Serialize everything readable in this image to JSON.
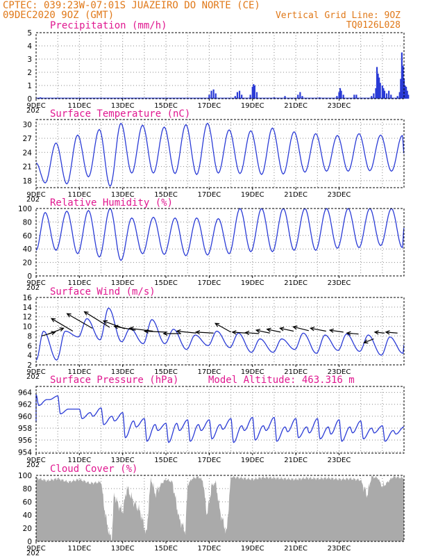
{
  "header": {
    "line1": "CPTEC:  039:23W-07:01S  JUAZEIRO DO NORTE (CE)",
    "run": "09DEC2020 9OZ (GMT)",
    "grid_line": "Vertical Grid Line: 9OZ",
    "code": "TQ0126L028"
  },
  "colors": {
    "series": "#2a3bd6",
    "title": "#e01890",
    "header": "#e07818",
    "cloud": "#aaaaaa"
  },
  "x_labels": [
    "9DEC",
    "11DEC",
    "13DEC",
    "15DEC",
    "17DEC",
    "19DEC",
    "21DEC",
    "23DEC"
  ],
  "x_sub_label": "202",
  "chart_data": [
    {
      "type": "bar",
      "title": "Precipitation (mm/h)",
      "x_unit": "days since 9DEC 09Z",
      "ylim": [
        0,
        5
      ],
      "yticks": [
        0,
        1,
        2,
        3,
        4,
        5
      ],
      "points": [
        [
          0.2,
          0.1
        ],
        [
          1.0,
          0.05
        ],
        [
          2.0,
          0.05
        ],
        [
          4.0,
          0.05
        ],
        [
          6.0,
          0.05
        ],
        [
          7.6,
          0.05
        ],
        [
          8.0,
          0.3
        ],
        [
          8.1,
          0.6
        ],
        [
          8.2,
          0.7
        ],
        [
          8.3,
          0.4
        ],
        [
          9.2,
          0.2
        ],
        [
          9.3,
          0.5
        ],
        [
          9.4,
          0.6
        ],
        [
          9.5,
          0.3
        ],
        [
          9.9,
          0.3
        ],
        [
          10.0,
          0.9
        ],
        [
          10.05,
          1.1
        ],
        [
          10.1,
          1.0
        ],
        [
          10.2,
          0.5
        ],
        [
          11.0,
          0.1
        ],
        [
          11.5,
          0.2
        ],
        [
          12.1,
          0.3
        ],
        [
          12.2,
          0.5
        ],
        [
          12.3,
          0.2
        ],
        [
          13.1,
          0.1
        ],
        [
          13.9,
          0.2
        ],
        [
          14.0,
          0.5
        ],
        [
          14.05,
          0.8
        ],
        [
          14.1,
          0.6
        ],
        [
          14.2,
          0.3
        ],
        [
          14.7,
          0.3
        ],
        [
          14.8,
          0.3
        ],
        [
          15.5,
          0.2
        ],
        [
          15.6,
          0.4
        ],
        [
          15.7,
          0.8
        ],
        [
          15.75,
          2.4
        ],
        [
          15.8,
          1.9
        ],
        [
          15.85,
          1.6
        ],
        [
          15.9,
          1.2
        ],
        [
          16.0,
          1.0
        ],
        [
          16.05,
          0.8
        ],
        [
          16.1,
          0.6
        ],
        [
          16.2,
          0.4
        ],
        [
          16.3,
          0.6
        ],
        [
          16.4,
          0.3
        ],
        [
          16.7,
          0.2
        ],
        [
          16.8,
          0.5
        ],
        [
          16.85,
          1.5
        ],
        [
          16.9,
          3.5
        ],
        [
          16.95,
          2.5
        ],
        [
          17.0,
          1.5
        ],
        [
          17.05,
          1.0
        ],
        [
          17.1,
          0.9
        ],
        [
          17.15,
          0.6
        ],
        [
          17.2,
          0.3
        ]
      ]
    },
    {
      "type": "line",
      "title": "Surface Temperature (nC)",
      "x_unit": "days since 9DEC 09Z",
      "ylim": [
        16.5,
        31
      ],
      "yticks": [
        18,
        21,
        24,
        27,
        30
      ],
      "series": [
        {
          "period_days": 1,
          "min_phase": 0.42,
          "max_phase": 0.92,
          "minima": [
            17.5,
            17.3,
            18.8,
            16.8,
            19.6,
            19.6,
            19.5,
            19.3,
            19.6,
            19.5,
            19.3,
            19.4,
            19.8,
            20.0,
            20.0,
            20.1,
            20.0
          ],
          "maxima": [
            26.0,
            27.7,
            28.9,
            30.2,
            29.8,
            29.4,
            29.9,
            30.2,
            28.8,
            28.6,
            29.2,
            28.4,
            28.0,
            27.6,
            28.0,
            27.7,
            27.6
          ]
        }
      ]
    },
    {
      "type": "line",
      "title": "Relative Humidity (%)",
      "x_unit": "days since 9DEC 09Z",
      "ylim": [
        0,
        100
      ],
      "yticks": [
        0,
        20,
        40,
        60,
        80,
        100
      ],
      "series": [
        {
          "period_days": 1,
          "min_phase": 0.92,
          "max_phase": 0.42,
          "start_value": 38,
          "minima": [
            38,
            33,
            28,
            23,
            33,
            32,
            30,
            31,
            33,
            36,
            36,
            38,
            38,
            41,
            42,
            45,
            42
          ],
          "maxima": [
            94,
            96,
            97,
            100,
            86,
            87,
            86,
            86,
            85,
            100,
            100,
            100,
            100,
            100,
            100,
            100,
            100
          ]
        }
      ]
    },
    {
      "type": "line",
      "title": "Surface Wind (m/s)",
      "x_unit": "days since 9DEC 09Z",
      "ylim": [
        2,
        16
      ],
      "yticks": [
        2,
        4,
        6,
        8,
        10,
        12,
        14,
        16
      ],
      "series": [
        {
          "period_days": 1,
          "min_phase": 0.95,
          "max_phase": 0.35,
          "start_value": 3,
          "minima": [
            3.0,
            7.8,
            7.2,
            6.8,
            6.4,
            6.4,
            5.2,
            6.0,
            5.6,
            4.6,
            4.6,
            5.2,
            4.4,
            5.0,
            4.8,
            4.0,
            4.4
          ],
          "maxima": [
            9.0,
            9.0,
            11.6,
            13.8,
            9.6,
            11.4,
            9.4,
            8.2,
            9.0,
            8.6,
            7.4,
            7.4,
            8.6,
            8.2,
            8.4,
            8.2,
            7.8
          ]
        }
      ],
      "wind_vectors": [
        {
          "x": 0.25,
          "y": 8.0,
          "u": 1.4,
          "v": 0.4
        },
        {
          "x": 0.55,
          "y": 8.4,
          "u": 1.6,
          "v": 0.6
        },
        {
          "x": 1.7,
          "y": 9.0,
          "u": -2.2,
          "v": 1.3
        },
        {
          "x": 2.6,
          "y": 9.6,
          "u": -2.6,
          "v": 1.5
        },
        {
          "x": 3.4,
          "y": 9.8,
          "u": -2.6,
          "v": 1.6
        },
        {
          "x": 4.1,
          "y": 9.5,
          "u": -2.2,
          "v": 0.8
        },
        {
          "x": 4.6,
          "y": 9.2,
          "u": -2.2,
          "v": 0.4
        },
        {
          "x": 5.4,
          "y": 9.0,
          "u": -2.4,
          "v": 0.3
        },
        {
          "x": 6.0,
          "y": 8.8,
          "u": -2.2,
          "v": 0.1
        },
        {
          "x": 6.7,
          "y": 8.5,
          "u": -1.8,
          "v": 0.0
        },
        {
          "x": 7.4,
          "y": 8.6,
          "u": -2.0,
          "v": 0.2
        },
        {
          "x": 8.2,
          "y": 8.6,
          "u": -1.8,
          "v": 0.1
        },
        {
          "x": 9.0,
          "y": 8.8,
          "u": -1.6,
          "v": 0.9
        },
        {
          "x": 9.7,
          "y": 8.6,
          "u": -1.4,
          "v": 0.1
        },
        {
          "x": 10.3,
          "y": 8.5,
          "u": -1.4,
          "v": 0.1
        },
        {
          "x": 10.8,
          "y": 8.6,
          "u": -1.4,
          "v": 0.3
        },
        {
          "x": 11.3,
          "y": 8.8,
          "u": -1.4,
          "v": 0.3
        },
        {
          "x": 11.9,
          "y": 9.0,
          "u": -1.4,
          "v": 0.3
        },
        {
          "x": 12.6,
          "y": 9.1,
          "u": -1.6,
          "v": 0.4
        },
        {
          "x": 13.4,
          "y": 9.0,
          "u": -1.6,
          "v": 0.3
        },
        {
          "x": 14.2,
          "y": 8.8,
          "u": -1.4,
          "v": 0.2
        },
        {
          "x": 14.9,
          "y": 8.4,
          "u": -1.2,
          "v": 0.1
        },
        {
          "x": 15.6,
          "y": 7.4,
          "u": -1.0,
          "v": -0.4
        },
        {
          "x": 16.1,
          "y": 8.6,
          "u": -1.0,
          "v": 0.1
        },
        {
          "x": 16.7,
          "y": 8.6,
          "u": -1.2,
          "v": 0.1
        }
      ]
    },
    {
      "type": "line",
      "title": "Surface Pressure (hPa)",
      "annotation": "Model Altitude: 463.316 m",
      "x_unit": "days since 9DEC 09Z",
      "ylim": [
        953.8,
        965
      ],
      "yticks": [
        954,
        956,
        958,
        960,
        962,
        964
      ],
      "series": [
        {
          "period_days": 0.5,
          "min_phase": 0.25,
          "max_phase": 0.0,
          "start_value": 959.0,
          "minima": [
            961.8,
            962.8,
            960.4,
            961.2,
            959.6,
            960.0,
            958.6,
            959.2,
            956.4,
            958.2,
            955.8,
            957.6,
            955.6,
            957.6,
            955.8,
            957.6,
            956.2,
            957.8,
            955.6,
            957.6,
            956.0,
            957.6,
            955.8,
            957.4,
            956.4,
            957.2,
            956.2,
            957.0,
            955.8,
            957.2,
            956.2,
            957.2,
            955.8,
            957.0,
            955.2
          ],
          "maxima": [
            963.6,
            962.8,
            963.4,
            961.2,
            961.2,
            960.6,
            961.4,
            960.0,
            960.6,
            959.2,
            959.6,
            958.6,
            958.8,
            958.8,
            959.4,
            958.6,
            959.4,
            958.6,
            959.6,
            958.4,
            959.8,
            958.4,
            959.8,
            958.2,
            959.6,
            958.2,
            959.6,
            958.2,
            959.4,
            958.2,
            959.2,
            958.0,
            958.4,
            957.6,
            958.2
          ]
        }
      ]
    },
    {
      "type": "area",
      "title": "Cloud Cover (%)",
      "x_unit": "days since 9DEC 09Z",
      "ylim": [
        0,
        100
      ],
      "yticks": [
        0,
        20,
        40,
        60,
        80,
        100
      ],
      "series": [
        {
          "name": "Cloud Cover",
          "x": [
            0,
            0.5,
            1,
            1.5,
            2,
            2.5,
            3,
            3.2,
            3.4,
            3.5,
            3.6,
            3.8,
            4.0,
            4.2,
            4.5,
            4.8,
            5.0,
            5.1,
            5.3,
            5.5,
            5.8,
            6.0,
            6.3,
            6.6,
            6.9,
            7.0,
            7.2,
            7.5,
            7.7,
            7.9,
            8.1,
            8.3,
            8.5,
            8.8,
            9.0,
            9.5,
            10,
            10.5,
            11,
            11.5,
            12,
            12.5,
            13,
            13.5,
            14,
            14.5,
            15,
            15.3,
            15.5,
            15.8,
            16,
            16.5,
            17
          ],
          "values": [
            96,
            92,
            95,
            90,
            94,
            88,
            90,
            40,
            8,
            5,
            72,
            55,
            45,
            82,
            60,
            46,
            22,
            10,
            96,
            72,
            88,
            94,
            90,
            35,
            15,
            85,
            95,
            98,
            92,
            40,
            82,
            90,
            45,
            12,
            98,
            96,
            94,
            97,
            96,
            95,
            94,
            96,
            95,
            96,
            94,
            95,
            93,
            70,
            98,
            96,
            82,
            98,
            96
          ]
        }
      ]
    }
  ]
}
